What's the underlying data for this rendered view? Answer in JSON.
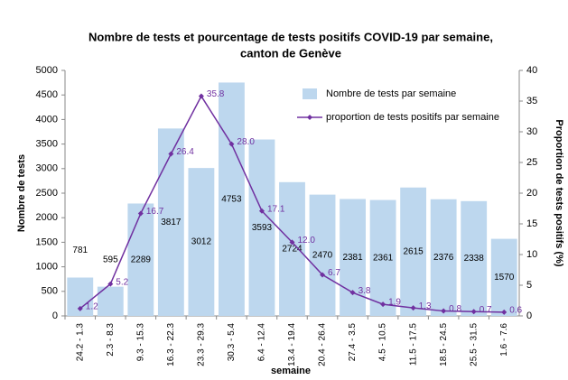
{
  "chart_data": {
    "type": "bar",
    "title": [
      "Nombre de tests et pourcentage de tests positifs COVID-19 par semaine,",
      "canton de Genève"
    ],
    "x_label": "semaine",
    "y_label": "Nombre de tests",
    "y2_label": "Proportion de tests positifs (%)",
    "categories": [
      "24.2 - 1.3",
      "2.3 - 8.3",
      "9.3 - 15.3",
      "16.3 - 22.3",
      "23.3 - 29.3",
      "30.3 - 5.4",
      "6.4 - 12.4",
      "13.4 - 19.4",
      "20.4 - 26.4",
      "27.4 - 3.5",
      "4.5 - 10.5",
      "11.5 - 17.5",
      "18.5 - 24.5",
      "25.5 - 31.5",
      "1.6 - 7.6"
    ],
    "series": [
      {
        "name": "Nombre de tests par semaine",
        "type": "bar",
        "color": "#bdd7ee",
        "values": [
          781,
          595,
          2289,
          3817,
          3012,
          4753,
          3593,
          2724,
          2470,
          2381,
          2361,
          2615,
          2376,
          2338,
          1570
        ]
      },
      {
        "name": "proportion de tests positifs par semaine",
        "type": "line",
        "axis": "y2",
        "color": "#7030a0",
        "values": [
          1.2,
          5.2,
          16.7,
          26.4,
          35.8,
          28.0,
          17.1,
          12.0,
          6.7,
          3.8,
          1.9,
          1.3,
          0.8,
          0.7,
          0.6
        ],
        "value_labels": [
          "1.2",
          "5.2",
          "16.7",
          "26.4",
          "35.8",
          "28.0",
          "17.1",
          "12.0",
          "6.7",
          "3.8",
          "1.9",
          "1.3",
          "0.8",
          "0.7",
          "0.6"
        ]
      }
    ],
    "ylim": [
      0,
      5000
    ],
    "yticks": [
      0,
      500,
      1000,
      1500,
      2000,
      2500,
      3000,
      3500,
      4000,
      4500,
      5000
    ],
    "y2lim": [
      0,
      40
    ],
    "y2ticks": [
      0,
      5,
      10,
      15,
      20,
      25,
      30,
      35,
      40
    ],
    "grid": false,
    "legend": "upper right"
  }
}
